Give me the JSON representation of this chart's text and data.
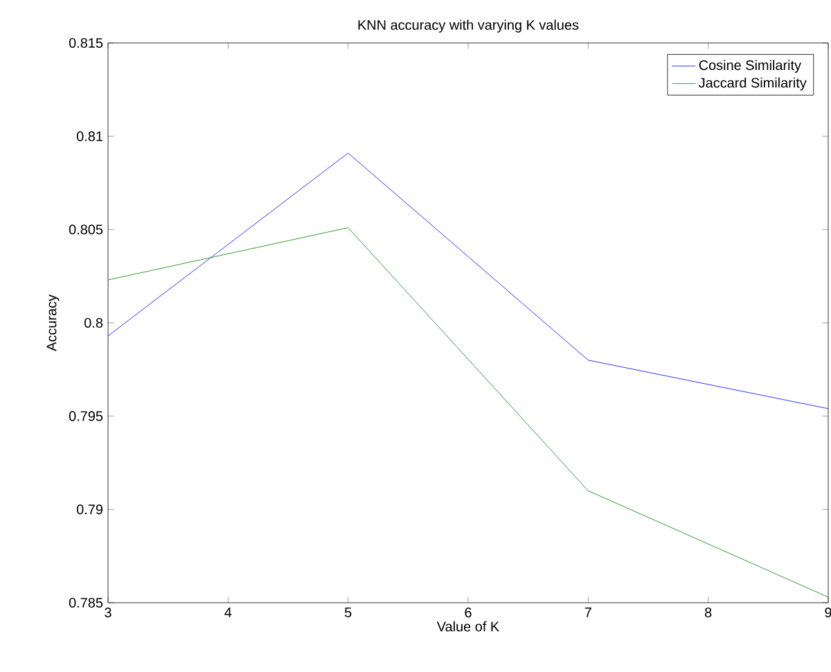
{
  "chart_data": {
    "type": "line",
    "title": "KNN accuracy with varying K values",
    "xlabel": "Value of K",
    "ylabel": "Accuracy",
    "x": [
      3,
      5,
      7,
      9
    ],
    "series": [
      {
        "name": "Cosine Similarity",
        "color": "#0000ff",
        "values": [
          0.7993,
          0.8091,
          0.798,
          0.7954
        ]
      },
      {
        "name": "Jaccard Similarity",
        "color": "#008000",
        "values": [
          0.8023,
          0.8051,
          0.791,
          0.7853
        ]
      }
    ],
    "xlim": [
      3,
      9
    ],
    "ylim": [
      0.785,
      0.815
    ],
    "xticks": [
      3,
      4,
      5,
      6,
      7,
      8,
      9
    ],
    "yticks": [
      0.785,
      0.79,
      0.795,
      0.8,
      0.805,
      0.81,
      0.815
    ],
    "legend": "top right",
    "grid": false,
    "marker": "none",
    "line_style": "solid"
  }
}
